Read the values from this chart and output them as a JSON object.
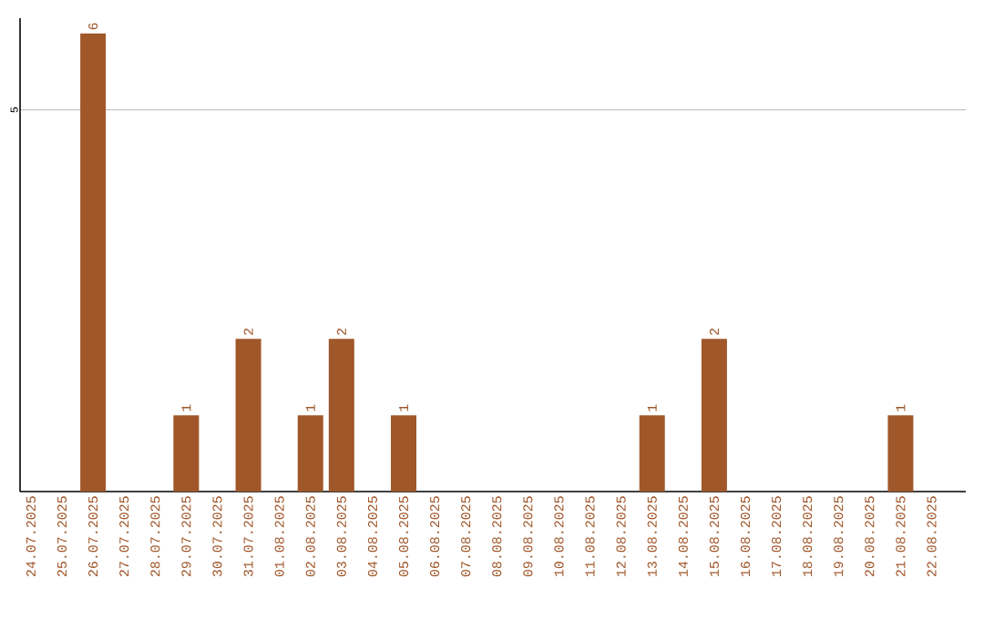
{
  "chart_data": {
    "type": "bar",
    "categories": [
      "24.07.2025",
      "25.07.2025",
      "26.07.2025",
      "27.07.2025",
      "28.07.2025",
      "29.07.2025",
      "30.07.2025",
      "31.07.2025",
      "01.08.2025",
      "02.08.2025",
      "03.08.2025",
      "04.08.2025",
      "05.08.2025",
      "06.08.2025",
      "07.08.2025",
      "08.08.2025",
      "09.08.2025",
      "10.08.2025",
      "11.08.2025",
      "12.08.2025",
      "13.08.2025",
      "14.08.2025",
      "15.08.2025",
      "16.08.2025",
      "17.08.2025",
      "18.08.2025",
      "19.08.2025",
      "20.08.2025",
      "21.08.2025",
      "22.08.2025"
    ],
    "values": [
      0,
      0,
      6,
      0,
      0,
      1,
      0,
      2,
      0,
      1,
      2,
      0,
      1,
      0,
      0,
      0,
      0,
      0,
      0,
      0,
      1,
      0,
      2,
      0,
      0,
      0,
      0,
      0,
      1,
      0
    ],
    "value_labels": [
      null,
      null,
      "6",
      null,
      null,
      "1",
      null,
      "2",
      null,
      "1",
      "2",
      null,
      "1",
      null,
      null,
      null,
      null,
      null,
      null,
      null,
      "1",
      null,
      "2",
      null,
      null,
      null,
      null,
      null,
      "1",
      null
    ],
    "color": "#a0572a",
    "ylim": [
      0,
      6.2
    ],
    "yticks": [
      5
    ],
    "grid": "y"
  }
}
